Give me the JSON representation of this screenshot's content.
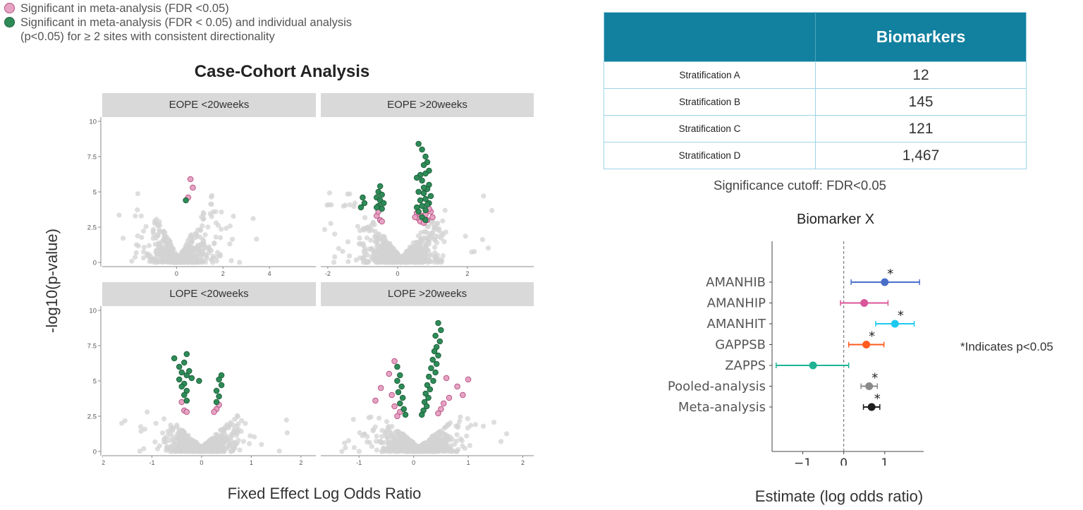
{
  "legend": {
    "meta_only": "Significant in meta-analysis (FDR <0.05)",
    "meta_and_sites": "Significant in meta-analysis (FDR < 0.05) and individual analysis (p<0.05) for ≥ 2 sites with consistent directionality",
    "colors": {
      "pink_fill": "#e6a3c3",
      "pink_edge": "#b34d7f",
      "green_fill": "#2e8b57",
      "green_edge": "#1d5e3a",
      "grey": "#d3d3d3"
    }
  },
  "volcano": {
    "title": "Case-Cohort Analysis",
    "ylabel": "-log10(p-value)",
    "xlabel": "Fixed Effect Log Odds Ratio",
    "ylim": [
      0,
      10
    ],
    "yticks": [
      "0",
      "2.5",
      "5",
      "7.5",
      "10"
    ]
  },
  "chart_data": [
    {
      "type": "scatter",
      "title": "EOPE <20weeks",
      "xlim": [
        -3.2,
        6.0
      ],
      "xticks": [
        "0",
        "2",
        "4"
      ],
      "ylim": [
        0,
        10
      ],
      "background": {
        "xmin": -2.5,
        "xmax": 4.8,
        "count": 520,
        "center": 0.1,
        "peak": 5.0
      },
      "series": [
        {
          "name": "Significant in meta-analysis (FDR <0.05)",
          "color": "#e6a3c3",
          "points": [
            [
              0.6,
              5.9
            ],
            [
              0.7,
              5.3
            ],
            [
              0.5,
              4.6
            ]
          ]
        },
        {
          "name": "Significant in meta-analysis (FDR < 0.05) and individual analysis (p<0.05) for ≥ 2 sites with consistent directionality",
          "color": "#2e8b57",
          "points": [
            [
              0.4,
              4.4
            ]
          ]
        }
      ]
    },
    {
      "type": "scatter",
      "title": "EOPE >20weeks",
      "xlim": [
        -2.2,
        3.9
      ],
      "xticks": [
        "-2",
        "0",
        "2"
      ],
      "ylim": [
        0,
        10
      ],
      "background": {
        "xmin": -2.1,
        "xmax": 3.7,
        "count": 620,
        "center": 0.1,
        "peak": 5.2
      },
      "series": [
        {
          "name": "Significant in meta-analysis (FDR <0.05)",
          "color": "#e6a3c3",
          "points": [
            [
              -0.5,
              3.0
            ],
            [
              -0.45,
              2.9
            ],
            [
              -0.6,
              3.3
            ],
            [
              0.6,
              3.1
            ],
            [
              0.7,
              3.3
            ],
            [
              0.55,
              3.5
            ],
            [
              0.85,
              3.0
            ],
            [
              0.95,
              3.6
            ],
            [
              0.65,
              2.9
            ],
            [
              0.8,
              3.4
            ],
            [
              1.0,
              3.2
            ],
            [
              0.75,
              2.8
            ],
            [
              -0.55,
              3.6
            ],
            [
              0.9,
              3.8
            ],
            [
              0.5,
              3.2
            ]
          ]
        },
        {
          "name": "Significant in meta-analysis (FDR < 0.05) and individual analysis (p<0.05) for ≥ 2 sites with consistent directionality",
          "color": "#2e8b57",
          "points": [
            [
              0.6,
              8.4
            ],
            [
              0.7,
              8.0
            ],
            [
              0.8,
              7.5
            ],
            [
              0.85,
              7.1
            ],
            [
              0.75,
              6.9
            ],
            [
              0.9,
              6.5
            ],
            [
              0.65,
              6.2
            ],
            [
              0.55,
              6.0
            ],
            [
              0.8,
              6.3
            ],
            [
              0.7,
              5.8
            ],
            [
              0.9,
              5.5
            ],
            [
              0.85,
              5.2
            ],
            [
              0.6,
              5.0
            ],
            [
              0.75,
              4.9
            ],
            [
              0.95,
              4.7
            ],
            [
              0.8,
              4.5
            ],
            [
              0.65,
              4.4
            ],
            [
              0.9,
              4.2
            ],
            [
              0.7,
              4.0
            ],
            [
              0.55,
              3.9
            ],
            [
              0.8,
              3.7
            ],
            [
              0.6,
              3.6
            ],
            [
              0.75,
              5.3
            ],
            [
              0.85,
              4.1
            ],
            [
              -1.0,
              4.6
            ],
            [
              -0.95,
              4.2
            ],
            [
              -1.05,
              3.9
            ],
            [
              -0.5,
              5.4
            ],
            [
              -0.55,
              5.0
            ],
            [
              -0.45,
              4.8
            ],
            [
              -0.6,
              4.6
            ],
            [
              -0.5,
              4.4
            ],
            [
              -0.4,
              4.2
            ],
            [
              -0.55,
              4.0
            ],
            [
              -0.45,
              3.8
            ],
            [
              -0.6,
              3.9
            ],
            [
              0.7,
              3.2
            ],
            [
              0.8,
              3.0
            ]
          ]
        }
      ]
    },
    {
      "type": "scatter",
      "title": "LOPE <20weeks",
      "xlim": [
        -2.0,
        2.3
      ],
      "xticks": [
        "-2",
        "-1",
        "0",
        "1",
        "2"
      ],
      "ylim": [
        0,
        10
      ],
      "background": {
        "xmin": -1.9,
        "xmax": 2.1,
        "count": 620,
        "center": 0.0,
        "peak": 3.0
      },
      "series": [
        {
          "name": "Significant in meta-analysis (FDR <0.05)",
          "color": "#e6a3c3",
          "points": [
            [
              -0.35,
              2.9
            ],
            [
              -0.3,
              2.8
            ],
            [
              0.3,
              3.0
            ],
            [
              0.25,
              2.8
            ],
            [
              -0.4,
              3.5
            ],
            [
              0.35,
              3.3
            ]
          ]
        },
        {
          "name": "Significant in meta-analysis (FDR < 0.05) and individual analysis (p<0.05) for ≥ 2 sites with consistent directionality",
          "color": "#2e8b57",
          "points": [
            [
              -0.55,
              6.6
            ],
            [
              -0.3,
              6.9
            ],
            [
              -0.35,
              6.3
            ],
            [
              -0.45,
              6.0
            ],
            [
              -0.4,
              5.6
            ],
            [
              -0.3,
              5.4
            ],
            [
              -0.45,
              5.1
            ],
            [
              -0.35,
              4.8
            ],
            [
              -0.4,
              4.6
            ],
            [
              -0.3,
              4.3
            ],
            [
              -0.35,
              4.0
            ],
            [
              -0.25,
              5.7
            ],
            [
              -0.2,
              5.2
            ],
            [
              -0.3,
              3.6
            ],
            [
              0.4,
              5.4
            ],
            [
              0.35,
              5.1
            ],
            [
              0.4,
              4.7
            ],
            [
              0.3,
              4.3
            ],
            [
              0.35,
              3.9
            ],
            [
              0.3,
              3.5
            ],
            [
              -0.05,
              5.0
            ]
          ]
        }
      ]
    },
    {
      "type": "scatter",
      "title": "LOPE >20weeks",
      "xlim": [
        -1.7,
        2.2
      ],
      "xticks": [
        "-1",
        "0",
        "1",
        "2"
      ],
      "ylim": [
        0,
        10
      ],
      "background": {
        "xmin": -1.5,
        "xmax": 2.1,
        "count": 760,
        "center": 0.1,
        "peak": 3.0
      },
      "series": [
        {
          "name": "Significant in meta-analysis (FDR <0.05)",
          "color": "#e6a3c3",
          "points": [
            [
              -0.35,
              6.4
            ],
            [
              -0.45,
              5.5
            ],
            [
              -0.6,
              4.5
            ],
            [
              -0.7,
              3.6
            ],
            [
              -0.35,
              3.2
            ],
            [
              -0.25,
              2.8
            ],
            [
              -0.4,
              4.0
            ],
            [
              0.6,
              5.2
            ],
            [
              0.8,
              4.6
            ],
            [
              0.9,
              4.0
            ],
            [
              0.65,
              3.8
            ],
            [
              0.5,
              3.0
            ],
            [
              0.45,
              2.7
            ],
            [
              1.0,
              5.1
            ],
            [
              0.55,
              3.4
            ],
            [
              -0.3,
              2.5
            ]
          ]
        },
        {
          "name": "Significant in meta-analysis (FDR < 0.05) and individual analysis (p<0.05) for ≥ 2 sites with consistent directionality",
          "color": "#2e8b57",
          "points": [
            [
              0.45,
              9.1
            ],
            [
              0.5,
              8.6
            ],
            [
              0.4,
              8.2
            ],
            [
              0.48,
              7.8
            ],
            [
              0.42,
              7.4
            ],
            [
              0.38,
              7.1
            ],
            [
              0.45,
              6.8
            ],
            [
              0.35,
              6.5
            ],
            [
              0.42,
              6.2
            ],
            [
              0.32,
              5.9
            ],
            [
              0.4,
              5.6
            ],
            [
              0.28,
              5.3
            ],
            [
              0.36,
              5.0
            ],
            [
              0.25,
              4.7
            ],
            [
              0.3,
              4.4
            ],
            [
              0.22,
              4.1
            ],
            [
              0.27,
              3.8
            ],
            [
              0.2,
              3.5
            ],
            [
              0.24,
              3.2
            ],
            [
              0.18,
              2.9
            ],
            [
              -0.25,
              5.4
            ],
            [
              -0.3,
              5.0
            ],
            [
              -0.22,
              4.6
            ],
            [
              -0.28,
              4.2
            ],
            [
              -0.2,
              3.8
            ],
            [
              -0.25,
              3.4
            ],
            [
              -0.18,
              3.0
            ],
            [
              -0.3,
              6.0
            ],
            [
              -0.15,
              2.6
            ],
            [
              0.15,
              2.6
            ]
          ]
        }
      ]
    },
    {
      "type": "table",
      "columns": [
        "",
        "Biomarkers"
      ],
      "rows": [
        [
          "Stratification A",
          "12"
        ],
        [
          "Stratification B",
          "145"
        ],
        [
          "Stratification C",
          "121"
        ],
        [
          "Stratification D",
          "1,467"
        ]
      ],
      "note": "Significance cutoff: FDR<0.05"
    },
    {
      "type": "forest",
      "title": "Biomarker X",
      "xlabel": "Estimate (log odds ratio)",
      "xlim": [
        -1.75,
        1.95
      ],
      "xticks": [
        "−1",
        "0",
        "1"
      ],
      "reference_line": 0,
      "note": "*Indicates p<0.05",
      "rows": [
        {
          "label": "AMANHIB",
          "estimate": 1.0,
          "lo": 0.18,
          "hi": 1.85,
          "color": "#4a6fc9",
          "sig": "*"
        },
        {
          "label": "AMANHIP",
          "estimate": 0.5,
          "lo": -0.08,
          "hi": 1.08,
          "color": "#d9559a",
          "sig": ""
        },
        {
          "label": "AMANHIT",
          "estimate": 1.25,
          "lo": 0.78,
          "hi": 1.72,
          "color": "#1ec8f0",
          "sig": "*"
        },
        {
          "label": "GAPPSB",
          "estimate": 0.55,
          "lo": 0.12,
          "hi": 0.98,
          "color": "#ff5a1f",
          "sig": "*"
        },
        {
          "label": "ZAPPS",
          "estimate": -0.75,
          "lo": -1.65,
          "hi": 0.12,
          "color": "#1fb394",
          "sig": ""
        },
        {
          "label": "Pooled-analysis",
          "estimate": 0.62,
          "lo": 0.42,
          "hi": 0.82,
          "color": "#8a8a8a",
          "sig": "*"
        },
        {
          "label": "Meta-analysis",
          "estimate": 0.68,
          "lo": 0.48,
          "hi": 0.88,
          "color": "#1e1e1e",
          "sig": "*"
        }
      ]
    }
  ]
}
